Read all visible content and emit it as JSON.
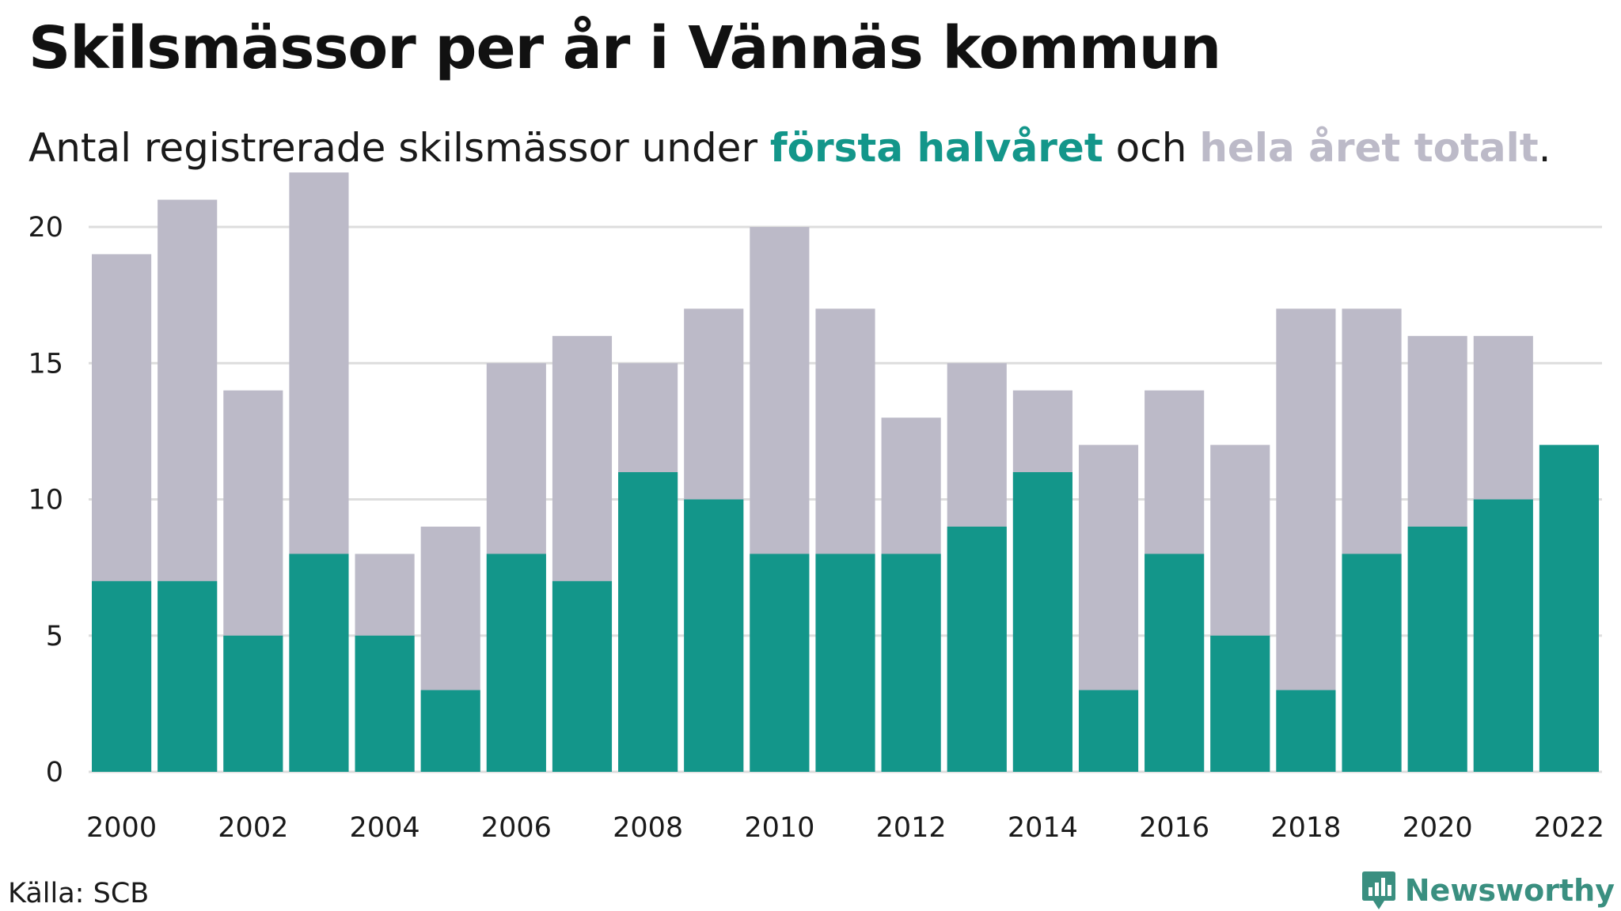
{
  "title": "Skilsmässor per år i Vännäs kommun",
  "subtitle": {
    "prefix": "Antal registrerade skilsmässor under ",
    "series1": "första halvåret",
    "middle": " och ",
    "series2": "hela året totalt",
    "suffix": "."
  },
  "source": "Källa: SCB",
  "brand": {
    "name": "Newsworthy",
    "icon": "newsworthy-logo-icon"
  },
  "colors": {
    "first_half": "#13968a",
    "full_year": "#bcbac8",
    "grid": "#dddddd",
    "brand": "#3a8f80"
  },
  "chart_data": {
    "type": "bar",
    "categories": [
      2000,
      2001,
      2002,
      2003,
      2004,
      2005,
      2006,
      2007,
      2008,
      2009,
      2010,
      2011,
      2012,
      2013,
      2014,
      2015,
      2016,
      2017,
      2018,
      2019,
      2020,
      2021,
      2022
    ],
    "x_tick_labels": [
      "2000",
      "2002",
      "2004",
      "2006",
      "2008",
      "2010",
      "2012",
      "2014",
      "2016",
      "2018",
      "2020",
      "2022"
    ],
    "series": [
      {
        "name": "hela året totalt",
        "values": [
          19,
          21,
          14,
          22,
          8,
          9,
          15,
          16,
          15,
          17,
          20,
          17,
          13,
          15,
          14,
          12,
          14,
          12,
          17,
          17,
          16,
          16,
          null
        ]
      },
      {
        "name": "första halvåret",
        "values": [
          7,
          7,
          5,
          8,
          5,
          3,
          8,
          7,
          11,
          10,
          8,
          8,
          8,
          9,
          11,
          3,
          8,
          5,
          3,
          8,
          9,
          10,
          12
        ]
      }
    ],
    "ylim": [
      0,
      23
    ],
    "y_ticks": [
      0,
      5,
      10,
      15,
      20
    ],
    "grid": true,
    "overlay": true
  }
}
